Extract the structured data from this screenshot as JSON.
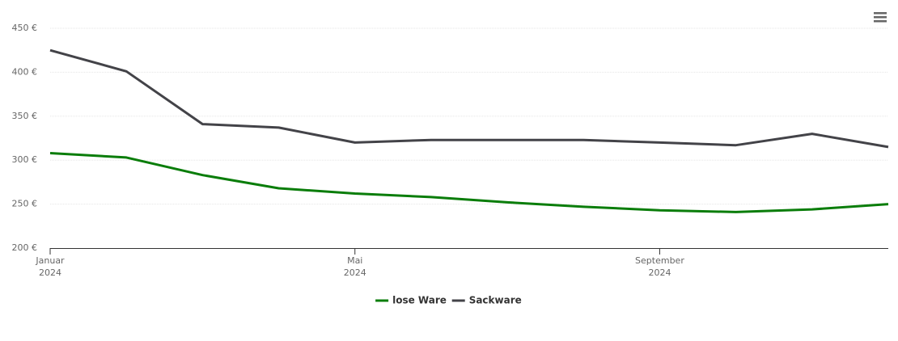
{
  "chart_data": {
    "type": "line",
    "x": [
      "2024-01",
      "2024-02",
      "2024-03",
      "2024-04",
      "2024-05",
      "2024-06",
      "2024-07",
      "2024-08",
      "2024-09",
      "2024-10",
      "2024-11",
      "2024-12"
    ],
    "series": [
      {
        "name": "lose Ware",
        "color": "#0a7d0a",
        "values": [
          308,
          303,
          283,
          268,
          262,
          258,
          252,
          247,
          243,
          241,
          244,
          250
        ]
      },
      {
        "name": "Sackware",
        "color": "#434348",
        "values": [
          425,
          401,
          341,
          337,
          320,
          323,
          323,
          323,
          320,
          317,
          330,
          315
        ]
      }
    ],
    "xlim": [
      "2024-01",
      "2024-12"
    ],
    "xticks": [
      {
        "value": "2024-01",
        "label": [
          "Januar",
          "2024"
        ]
      },
      {
        "value": "2024-05",
        "label": [
          "Mai",
          "2024"
        ]
      },
      {
        "value": "2024-09",
        "label": [
          "September",
          "2024"
        ]
      }
    ],
    "ylim": [
      200,
      450
    ],
    "yticks": [
      {
        "value": 200,
        "label": "200 €"
      },
      {
        "value": 250,
        "label": "250 €"
      },
      {
        "value": 300,
        "label": "300 €"
      },
      {
        "value": 350,
        "label": "350 €"
      },
      {
        "value": 400,
        "label": "400 €"
      },
      {
        "value": 450,
        "label": "450 €"
      }
    ],
    "grid": true,
    "legend": "bottom"
  }
}
